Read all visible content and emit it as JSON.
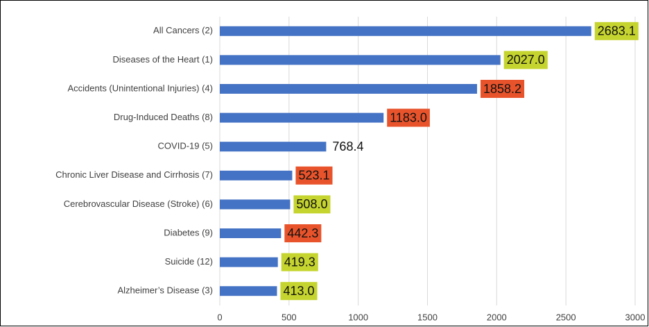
{
  "chart_data": {
    "type": "bar",
    "orientation": "horizontal",
    "categories": [
      "All Cancers (2)",
      "Diseases of the Heart (1)",
      "Accidents (Unintentional Injuries) (4)",
      "Drug-Induced Deaths (8)",
      "COVID-19 (5)",
      "Chronic Liver Disease and Cirrhosis (7)",
      "Cerebrovascular Disease (Stroke) (6)",
      "Diabetes (9)",
      "Suicide (12)",
      "Alzheimer’s Disease (3)"
    ],
    "values": [
      2683.1,
      2027,
      1858.2,
      1183,
      768.4,
      523.1,
      508,
      442.3,
      419.3,
      413
    ],
    "value_labels": [
      "2683.1",
      "2027.0",
      "1858.2",
      "1183.0",
      "768.4",
      "523.1",
      "508.0",
      "442.3",
      "419.3",
      "413.0"
    ],
    "label_colors": [
      "#c5d42e",
      "#c5d42e",
      "#e8532b",
      "#e8532b",
      null,
      "#e8532b",
      "#c5d42e",
      "#e8532b",
      "#c5d42e",
      "#c5d42e"
    ],
    "color": "#4472c4",
    "xlim": [
      0,
      3000
    ],
    "xticks": [
      0,
      500,
      1000,
      1500,
      2000,
      2500,
      3000
    ],
    "grid": true
  }
}
